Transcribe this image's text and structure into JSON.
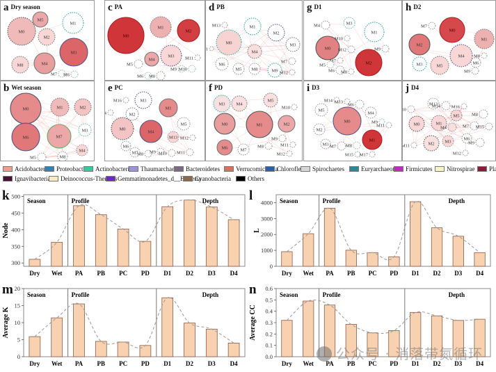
{
  "network_panels": [
    {
      "letter": "a",
      "title": "Dry season",
      "modules": [
        "M0",
        "M1",
        "M2",
        "M3",
        "M4",
        "M5",
        "M6",
        "M7",
        "M8"
      ]
    },
    {
      "letter": "b",
      "title": "Wet season",
      "modules": [
        "M0",
        "M1",
        "M2",
        "M3",
        "M4",
        "M5",
        "M6",
        "M7",
        "M8"
      ]
    },
    {
      "letter": "c",
      "title": "PA",
      "modules": [
        "M0",
        "M1",
        "M2",
        "M3",
        "M4",
        "M5",
        "M6",
        "M8",
        "M9",
        "M10",
        "M11"
      ]
    },
    {
      "letter": "d",
      "title": "PB",
      "modules": [
        "M0",
        "M1",
        "M2",
        "M3",
        "M4",
        "M5",
        "M6",
        "M7",
        "M8",
        "M9",
        "M11",
        "M12",
        "M13"
      ]
    },
    {
      "letter": "e",
      "title": "PC",
      "modules": [
        "M0",
        "M1",
        "M2",
        "M3",
        "M4",
        "M5",
        "M6",
        "M7",
        "M8",
        "M9",
        "M10",
        "M11",
        "M12",
        "M13",
        "M14",
        "M16"
      ]
    },
    {
      "letter": "f",
      "title": "PD",
      "modules": [
        "M0",
        "M1",
        "M2",
        "M3",
        "M4",
        "M5",
        "M6",
        "M7",
        "M8",
        "M9",
        "M10",
        "M11",
        "M12"
      ]
    },
    {
      "letter": "g",
      "title": "D1",
      "modules": [
        "M0",
        "M1",
        "M2",
        "M3",
        "M4",
        "M5",
        "M6",
        "M7",
        "M8",
        "M9",
        "M10",
        "M12"
      ]
    },
    {
      "letter": "h",
      "title": "D2",
      "modules": [
        "M0",
        "M1",
        "M2",
        "M3",
        "M4",
        "M5",
        "M6",
        "M7",
        "M8",
        "M9"
      ]
    },
    {
      "letter": "i",
      "title": "D3",
      "modules": [
        "M0",
        "M1",
        "M2",
        "M3",
        "M4",
        "M5",
        "M6",
        "M7",
        "M8",
        "M9",
        "M11",
        "M13",
        "M14",
        "M15",
        "M17"
      ]
    },
    {
      "letter": "j",
      "title": "D4",
      "modules": [
        "M0",
        "M1",
        "M2",
        "M3",
        "M4",
        "M5",
        "M6",
        "M7",
        "M8",
        "M9",
        "M10",
        "M11",
        "M12",
        "M13",
        "M14",
        "M15",
        "M16"
      ]
    }
  ],
  "legend": {
    "row1": [
      {
        "label": "Acidobacteria",
        "color": "#e8a090"
      },
      {
        "label": "Proteobacteria",
        "color": "#3b7fb0"
      },
      {
        "label": "Actinobacteria",
        "color": "#3cc89a"
      },
      {
        "label": "Thaumarchaeota",
        "color": "#9c94d6"
      },
      {
        "label": "Bacteroidetes",
        "color": "#7a6a86"
      },
      {
        "label": "Verrucomicrobia",
        "color": "#d8705e"
      },
      {
        "label": "Chloroflexi",
        "color": "#2f5f9e"
      },
      {
        "label": "Spirochaetes",
        "color": "#d6d6d6"
      },
      {
        "label": "Euryarchaeota",
        "color": "#2a8a92"
      },
      {
        "label": "Firmicutes",
        "color": "#c02cc0"
      },
      {
        "label": "Nitrospirae",
        "color": "#f4f4c8"
      },
      {
        "label": "Planctomycetes",
        "color": "#8e1a3a"
      }
    ],
    "row2": [
      {
        "label": "Ignavibacteriae",
        "color": "#4a1034"
      },
      {
        "label": "Deinococcus-Thermus",
        "color": "#f8ecc4"
      },
      {
        "label": "Gemmatimonadetes_d__Bacteria",
        "color": "#6a2cc0"
      },
      {
        "label": "Cyanobacteria",
        "color": "#8a6a4e"
      },
      {
        "label": "Others",
        "color": "#000000"
      }
    ]
  },
  "chart_data": [
    {
      "id": "k",
      "type": "bar",
      "title": "",
      "ylabel": "Node",
      "xlabel": "",
      "categories": [
        "Dry",
        "Wet",
        "PA",
        "PB",
        "PC",
        "PD",
        "D1",
        "D2",
        "D3",
        "D4"
      ],
      "values": [
        311,
        362,
        472,
        445,
        402,
        365,
        469,
        489,
        468,
        430
      ],
      "ylim": [
        290,
        505
      ],
      "yticks": [
        300,
        350,
        400,
        450,
        500
      ],
      "groups": [
        {
          "label": "Season",
          "span": [
            0,
            1
          ]
        },
        {
          "label": "Profile",
          "span": [
            2,
            5
          ]
        },
        {
          "label": "Depth",
          "span": [
            6,
            9
          ]
        }
      ],
      "trend": "dashed-line",
      "grid": false
    },
    {
      "id": "l",
      "type": "bar",
      "title": "",
      "ylabel": "L",
      "xlabel": "",
      "categories": [
        "Dry",
        "Wet",
        "PA",
        "PB",
        "PC",
        "PD",
        "D1",
        "D2",
        "D3",
        "D4"
      ],
      "values": [
        920,
        2050,
        3650,
        1010,
        860,
        600,
        4060,
        2420,
        1890,
        860
      ],
      "ylim": [
        0,
        4500
      ],
      "yticks": [
        0,
        1000,
        2000,
        3000,
        4000
      ],
      "groups": [
        {
          "label": "Season",
          "span": [
            0,
            1
          ]
        },
        {
          "label": "Profile",
          "span": [
            2,
            5
          ]
        },
        {
          "label": "Depth",
          "span": [
            6,
            9
          ]
        }
      ],
      "trend": "dashed-line",
      "grid": false
    },
    {
      "id": "m",
      "type": "bar",
      "title": "",
      "ylabel": "Average K",
      "xlabel": "",
      "categories": [
        "Dry",
        "Wet",
        "PA",
        "PB",
        "PC",
        "PD",
        "D1",
        "D2",
        "D3",
        "D4"
      ],
      "values": [
        5.9,
        11.4,
        15.5,
        4.5,
        4.3,
        3.3,
        17.3,
        9.9,
        8.1,
        4.0
      ],
      "ylim": [
        0,
        20
      ],
      "yticks": [
        0,
        5,
        10,
        15,
        20
      ],
      "groups": [
        {
          "label": "Season",
          "span": [
            0,
            1
          ]
        },
        {
          "label": "Profile",
          "span": [
            2,
            5
          ]
        },
        {
          "label": "Depth",
          "span": [
            6,
            9
          ]
        }
      ],
      "trend": "dashed-line",
      "grid": false
    },
    {
      "id": "n",
      "type": "bar",
      "title": "",
      "ylabel": "Average CC",
      "xlabel": "",
      "categories": [
        "Dry",
        "Wet",
        "PA",
        "PB",
        "PC",
        "PD",
        "D1",
        "D2",
        "D3",
        "D4"
      ],
      "values": [
        0.32,
        0.49,
        0.455,
        0.285,
        0.21,
        0.23,
        0.39,
        0.36,
        0.32,
        0.33
      ],
      "ylim": [
        0,
        0.6
      ],
      "yticks": [
        0.0,
        0.1,
        0.2,
        0.3,
        0.4,
        0.5,
        0.6
      ],
      "groups": [
        {
          "label": "Season",
          "span": [
            0,
            1
          ]
        },
        {
          "label": "Profile",
          "span": [
            2,
            5
          ]
        },
        {
          "label": "Depth",
          "span": [
            6,
            9
          ]
        }
      ],
      "trend": "dashed-line",
      "grid": false
    }
  ],
  "colors": {
    "bar_fill": "#f8d2b0",
    "bar_stroke": "#8a5a48",
    "trend": "#999999",
    "frame": "#888888"
  },
  "watermark": "公众号 · 消落带氮循环"
}
